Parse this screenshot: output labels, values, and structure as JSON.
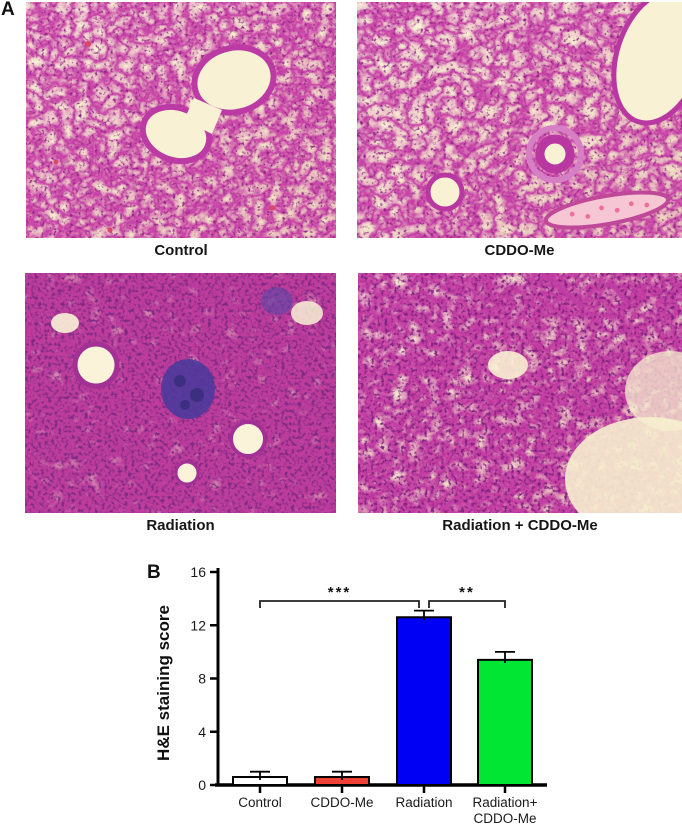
{
  "panel_a": {
    "label": "A",
    "captions": [
      "Control",
      "CDDO-Me",
      "Radiation",
      "Radiation + CDDO-Me"
    ]
  },
  "panel_b": {
    "label": "B"
  },
  "chart_data": {
    "type": "bar",
    "title": "",
    "xlabel": "",
    "ylabel": "H&E staining score",
    "ylim": [
      0,
      16
    ],
    "yticks": [
      0,
      4,
      8,
      12,
      16
    ],
    "categories": [
      "Control",
      "CDDO-Me",
      "Radiation",
      "Radiation+\nCDDO-Me"
    ],
    "values": [
      0.6,
      0.6,
      12.6,
      9.4
    ],
    "errors": [
      0.4,
      0.4,
      0.5,
      0.6
    ],
    "bar_colors": [
      "#ffffff",
      "#ef4136",
      "#0000f5",
      "#00e632"
    ],
    "bar_border": "#000000",
    "significance": [
      {
        "from": 0,
        "to": 2,
        "label": "***"
      },
      {
        "from": 2,
        "to": 3,
        "label": "**"
      }
    ],
    "grid": false,
    "legend": null
  },
  "colors": {
    "he_stain_magenta": "#c238a3",
    "he_nuclei_purple": "#8c2180",
    "slide_background": "#f7efcf",
    "radiation_infiltrate": "#4e3a9b"
  }
}
